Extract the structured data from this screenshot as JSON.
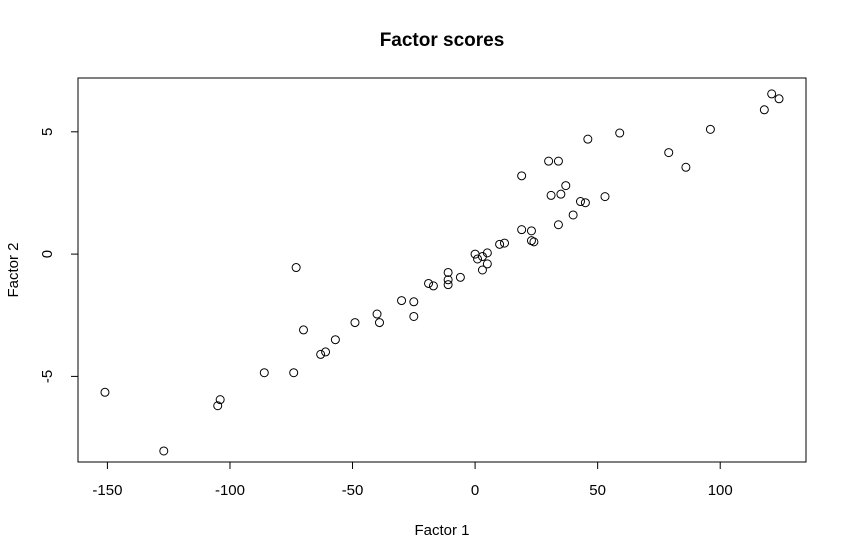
{
  "chart_data": {
    "type": "scatter",
    "title": "Factor scores",
    "xlabel": "Factor 1",
    "ylabel": "Factor 2",
    "xlim": [
      -162,
      135
    ],
    "ylim": [
      -8.5,
      7.2
    ],
    "x_ticks": [
      -150,
      -100,
      -50,
      0,
      50,
      100
    ],
    "y_ticks": [
      -5,
      0,
      5
    ],
    "grid": false,
    "marker": "open-circle",
    "points": [
      {
        "x": -151,
        "y": -5.65
      },
      {
        "x": -127,
        "y": -8.05
      },
      {
        "x": -105,
        "y": -6.2
      },
      {
        "x": -104,
        "y": -5.95
      },
      {
        "x": -86,
        "y": -4.85
      },
      {
        "x": -74,
        "y": -4.85
      },
      {
        "x": -73,
        "y": -0.55
      },
      {
        "x": -70,
        "y": -3.1
      },
      {
        "x": -63,
        "y": -4.1
      },
      {
        "x": -61,
        "y": -4.0
      },
      {
        "x": -57,
        "y": -3.5
      },
      {
        "x": -49,
        "y": -2.8
      },
      {
        "x": -40,
        "y": -2.45
      },
      {
        "x": -39,
        "y": -2.8
      },
      {
        "x": -30,
        "y": -1.9
      },
      {
        "x": -25,
        "y": -1.95
      },
      {
        "x": -25,
        "y": -2.55
      },
      {
        "x": -19,
        "y": -1.2
      },
      {
        "x": -17,
        "y": -1.3
      },
      {
        "x": -11,
        "y": -1.05
      },
      {
        "x": -11,
        "y": -0.75
      },
      {
        "x": -11,
        "y": -1.25
      },
      {
        "x": -6,
        "y": -0.95
      },
      {
        "x": 0,
        "y": 0.0
      },
      {
        "x": 1,
        "y": -0.2
      },
      {
        "x": 3,
        "y": -0.1
      },
      {
        "x": 3,
        "y": -0.65
      },
      {
        "x": 5,
        "y": 0.05
      },
      {
        "x": 5,
        "y": -0.4
      },
      {
        "x": 10,
        "y": 0.4
      },
      {
        "x": 12,
        "y": 0.45
      },
      {
        "x": 19,
        "y": 1.0
      },
      {
        "x": 19,
        "y": 3.2
      },
      {
        "x": 23,
        "y": 0.95
      },
      {
        "x": 23,
        "y": 0.55
      },
      {
        "x": 24,
        "y": 0.5
      },
      {
        "x": 30,
        "y": 3.8
      },
      {
        "x": 31,
        "y": 2.4
      },
      {
        "x": 34,
        "y": 3.8
      },
      {
        "x": 34,
        "y": 1.2
      },
      {
        "x": 35,
        "y": 2.45
      },
      {
        "x": 37,
        "y": 2.8
      },
      {
        "x": 40,
        "y": 1.6
      },
      {
        "x": 43,
        "y": 2.15
      },
      {
        "x": 45,
        "y": 2.1
      },
      {
        "x": 46,
        "y": 4.7
      },
      {
        "x": 53,
        "y": 2.35
      },
      {
        "x": 59,
        "y": 4.95
      },
      {
        "x": 79,
        "y": 4.15
      },
      {
        "x": 86,
        "y": 3.55
      },
      {
        "x": 96,
        "y": 5.1
      },
      {
        "x": 118,
        "y": 5.9
      },
      {
        "x": 121,
        "y": 6.55
      },
      {
        "x": 124,
        "y": 6.35
      }
    ]
  }
}
